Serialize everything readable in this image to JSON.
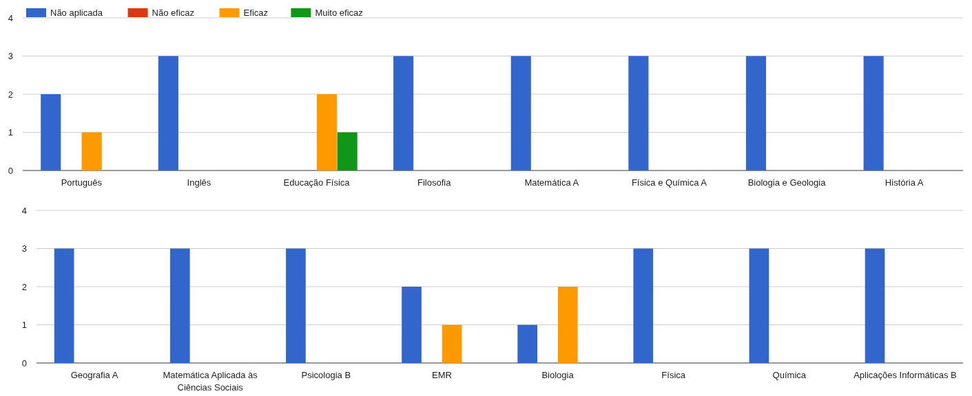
{
  "chart_data": [
    {
      "type": "bar",
      "categories": [
        "Português",
        "Inglês",
        "Educação Física",
        "Filosofia",
        "Matemática A",
        "Física e Química A",
        "Biologia e Geologia",
        "História A"
      ],
      "series": [
        {
          "name": "Não aplicada",
          "color": "#3366cc",
          "values": [
            2,
            3,
            0,
            3,
            3,
            3,
            3,
            3
          ]
        },
        {
          "name": "Não eficaz",
          "color": "#dc3912",
          "values": [
            0,
            0,
            0,
            0,
            0,
            0,
            0,
            0
          ]
        },
        {
          "name": "Eficaz",
          "color": "#ff9900",
          "values": [
            1,
            0,
            2,
            0,
            0,
            0,
            0,
            0
          ]
        },
        {
          "name": "Muito eficaz",
          "color": "#109618",
          "values": [
            0,
            0,
            1,
            0,
            0,
            0,
            0,
            0
          ]
        }
      ],
      "ylim": [
        0,
        4
      ],
      "yticks": [
        0,
        1,
        2,
        3,
        4
      ],
      "grid": true,
      "legend": "top left"
    },
    {
      "type": "bar",
      "categories": [
        "Geografia A",
        "Matemática Aplicada às Ciências Sociais",
        "Psicologia B",
        "EMR",
        "Biologia",
        "Física",
        "Química",
        "Aplicações Informáticas B"
      ],
      "series": [
        {
          "color": "#3366cc",
          "values": [
            3,
            3,
            3,
            2,
            1,
            3,
            3,
            3
          ]
        },
        {
          "color": "#dc3912",
          "values": [
            0,
            0,
            0,
            0,
            0,
            0,
            0,
            0
          ]
        },
        {
          "color": "#ff9900",
          "values": [
            0,
            0,
            0,
            1,
            2,
            0,
            0,
            0
          ]
        },
        {
          "color": "#109618",
          "values": [
            0,
            0,
            0,
            0,
            0,
            0,
            0,
            0
          ]
        }
      ],
      "ylim": [
        0,
        4
      ],
      "yticks": [
        0,
        1,
        2,
        3,
        4
      ],
      "grid": true
    }
  ]
}
